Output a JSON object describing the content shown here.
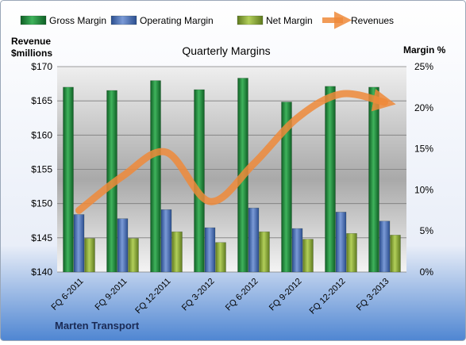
{
  "chart_data": {
    "type": "bar",
    "title": "Quarterly Margins",
    "left_axis_label_line1": "Revenue",
    "left_axis_label_line2": "$millions",
    "right_axis_label": "Margin %",
    "company_label": "Marten Transport",
    "categories": [
      "FQ 6-2011",
      "FQ 9-2011",
      "FQ 12-2011",
      "FQ 3-2012",
      "FQ 6-2012",
      "FQ 9-2012",
      "FQ 12-2012",
      "FQ 3-2013"
    ],
    "left_axis": {
      "min": 140,
      "max": 170,
      "step": 5,
      "tick_labels": [
        "$140",
        "$145",
        "$150",
        "$155",
        "$160",
        "$165",
        "$170"
      ]
    },
    "right_axis": {
      "min": 0,
      "max": 25,
      "step": 5,
      "tick_labels": [
        "0%",
        "5%",
        "10%",
        "15%",
        "20%",
        "25%"
      ]
    },
    "series": [
      {
        "name": "Gross Margin",
        "axis": "right",
        "kind": "bar",
        "color": "#1e8a3c",
        "values": [
          22.5,
          22.1,
          23.3,
          22.2,
          23.6,
          20.7,
          22.6,
          22.5
        ]
      },
      {
        "name": "Operating Margin",
        "axis": "right",
        "kind": "bar",
        "color": "#4a6fb5",
        "values": [
          7.0,
          6.5,
          7.6,
          5.4,
          7.8,
          5.3,
          7.3,
          6.2
        ]
      },
      {
        "name": "Net Margin",
        "axis": "right",
        "kind": "bar",
        "color": "#8fae3c",
        "values": [
          4.1,
          4.1,
          4.9,
          3.6,
          4.9,
          4.0,
          4.7,
          4.5
        ]
      },
      {
        "name": "Revenues",
        "axis": "left",
        "kind": "line",
        "color": "#ef8a3a",
        "values": [
          149.0,
          154.0,
          157.5,
          150.3,
          155.8,
          162.5,
          166.0,
          164.8
        ]
      }
    ],
    "grid": true,
    "legend_position": "top"
  }
}
